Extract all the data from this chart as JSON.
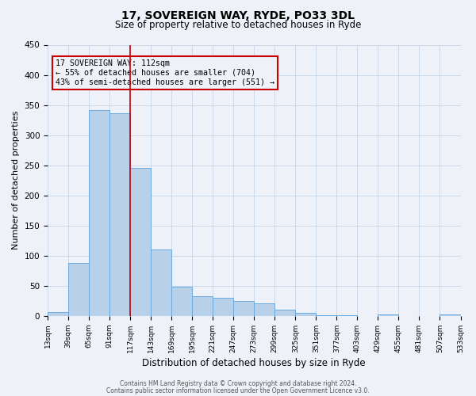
{
  "title_line1": "17, SOVEREIGN WAY, RYDE, PO33 3DL",
  "title_line2": "Size of property relative to detached houses in Ryde",
  "xlabel": "Distribution of detached houses by size in Ryde",
  "ylabel": "Number of detached properties",
  "bar_values": [
    7,
    88,
    342,
    336,
    246,
    110,
    49,
    33,
    30,
    25,
    21,
    10,
    5,
    1,
    1,
    0,
    2,
    0,
    0,
    2
  ],
  "bar_labels": [
    "13sqm",
    "39sqm",
    "65sqm",
    "91sqm",
    "117sqm",
    "143sqm",
    "169sqm",
    "195sqm",
    "221sqm",
    "247sqm",
    "273sqm",
    "299sqm",
    "325sqm",
    "351sqm",
    "377sqm",
    "403sqm",
    "429sqm",
    "455sqm",
    "481sqm",
    "507sqm",
    "533sqm"
  ],
  "bar_color": "#b8d0e8",
  "bar_edge_color": "#6aabe0",
  "ylim": [
    0,
    450
  ],
  "yticks": [
    0,
    50,
    100,
    150,
    200,
    250,
    300,
    350,
    400,
    450
  ],
  "property_label": "17 SOVEREIGN WAY: 112sqm",
  "annotation_line1": "← 55% of detached houses are smaller (704)",
  "annotation_line2": "43% of semi-detached houses are larger (551) →",
  "vline_position": 4,
  "vline_color": "#cc0000",
  "annotation_box_color": "#cc0000",
  "footer_line1": "Contains HM Land Registry data © Crown copyright and database right 2024.",
  "footer_line2": "Contains public sector information licensed under the Open Government Licence v3.0.",
  "background_color": "#eef2f8",
  "grid_color": "#c5d5e8"
}
